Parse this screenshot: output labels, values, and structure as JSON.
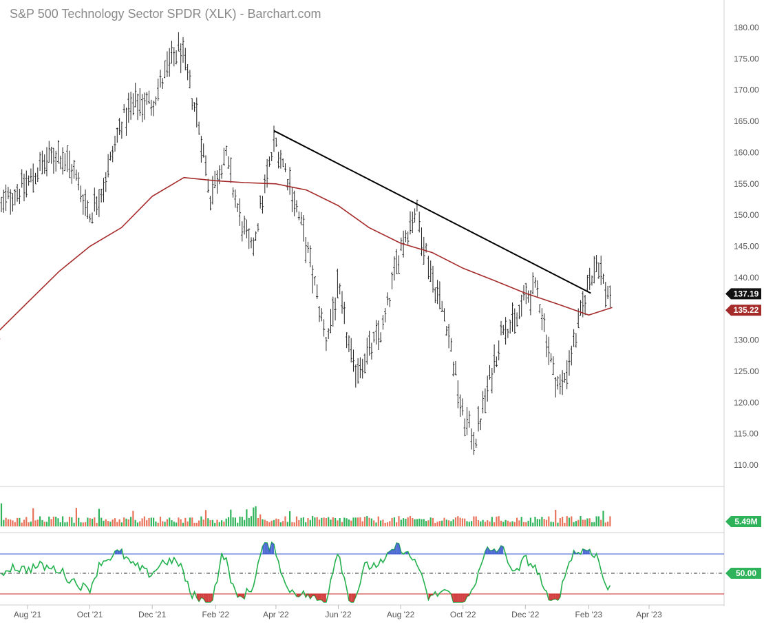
{
  "chart_data": {
    "type": "ohlc",
    "title": "S&P 500 Technology Sector SPDR (XLK) - Barchart.com",
    "colors": {
      "price_bars": "#222222",
      "moving_average": "#a52a2a",
      "trendline": "#000000",
      "volume_up": "#2fb35a",
      "volume_down": "#e8735a",
      "oscillator": "#22b14c",
      "overbought_line": "#3355cc",
      "oversold_line": "#cc2222",
      "mid_line": "#333333",
      "last_price_badge": "#111111",
      "ma_badge": "#a52a2a",
      "volume_badge": "#2fb35a",
      "osc_badge": "#2fb35a"
    },
    "price_axis": {
      "ticks": [
        "180.00",
        "175.00",
        "170.00",
        "165.00",
        "160.00",
        "155.00",
        "150.00",
        "145.00",
        "140.00",
        "135.00",
        "130.00",
        "125.00",
        "120.00",
        "115.00",
        "110.00"
      ],
      "ylim": [
        107,
        182
      ]
    },
    "x_axis": {
      "ticks": [
        "Aug '21",
        "Oct '21",
        "Dec '21",
        "Feb '22",
        "Apr '22",
        "Jun '22",
        "Aug '22",
        "Oct '22",
        "Dec '22",
        "Feb '23",
        "Apr '23"
      ]
    },
    "price_series": {
      "name": "XLK",
      "points": [
        [
          "2021-07-01",
          150
        ],
        [
          "2021-07-15",
          153
        ],
        [
          "2021-08-01",
          155
        ],
        [
          "2021-08-15",
          158
        ],
        [
          "2021-09-01",
          160
        ],
        [
          "2021-09-15",
          157
        ],
        [
          "2021-10-01",
          150
        ],
        [
          "2021-10-15",
          155
        ],
        [
          "2021-11-01",
          165
        ],
        [
          "2021-11-15",
          168
        ],
        [
          "2021-12-01",
          168
        ],
        [
          "2021-12-15",
          173
        ],
        [
          "2021-12-28",
          177
        ],
        [
          "2022-01-15",
          165
        ],
        [
          "2022-01-27",
          153
        ],
        [
          "2022-02-10",
          160
        ],
        [
          "2022-02-24",
          150
        ],
        [
          "2022-03-08",
          144
        ],
        [
          "2022-03-31",
          162
        ],
        [
          "2022-04-15",
          155
        ],
        [
          "2022-05-01",
          145
        ],
        [
          "2022-05-20",
          130
        ],
        [
          "2022-06-01",
          138
        ],
        [
          "2022-06-16",
          125
        ],
        [
          "2022-07-01",
          128
        ],
        [
          "2022-07-15",
          132
        ],
        [
          "2022-08-01",
          145
        ],
        [
          "2022-08-16",
          151
        ],
        [
          "2022-09-01",
          140
        ],
        [
          "2022-09-15",
          133
        ],
        [
          "2022-09-30",
          118
        ],
        [
          "2022-10-13",
          114
        ],
        [
          "2022-10-25",
          122
        ],
        [
          "2022-11-10",
          133
        ],
        [
          "2022-11-20",
          132
        ],
        [
          "2022-12-01",
          137
        ],
        [
          "2022-12-13",
          138
        ],
        [
          "2022-12-28",
          125
        ],
        [
          "2023-01-05",
          122
        ],
        [
          "2023-01-20",
          131
        ],
        [
          "2023-02-02",
          140
        ],
        [
          "2023-02-10",
          143
        ],
        [
          "2023-02-17",
          138
        ],
        [
          "2023-02-24",
          137.19
        ]
      ]
    },
    "moving_average": {
      "points": [
        [
          "2021-07-01",
          131
        ],
        [
          "2021-08-01",
          136
        ],
        [
          "2021-09-01",
          141
        ],
        [
          "2021-10-01",
          145
        ],
        [
          "2021-11-01",
          148
        ],
        [
          "2021-12-01",
          153
        ],
        [
          "2022-01-01",
          156
        ],
        [
          "2022-02-01",
          155.5
        ],
        [
          "2022-03-01",
          155.2
        ],
        [
          "2022-04-01",
          155
        ],
        [
          "2022-05-01",
          154
        ],
        [
          "2022-06-01",
          151.5
        ],
        [
          "2022-07-01",
          148
        ],
        [
          "2022-08-01",
          145.5
        ],
        [
          "2022-09-01",
          144
        ],
        [
          "2022-10-01",
          141.5
        ],
        [
          "2022-11-01",
          139.5
        ],
        [
          "2022-12-01",
          137.5
        ],
        [
          "2023-01-01",
          135.8
        ],
        [
          "2023-02-01",
          134
        ],
        [
          "2023-02-24",
          135.22
        ]
      ]
    },
    "trendline": {
      "start": [
        "2022-03-30",
        163.5
      ],
      "end": [
        "2023-02-03",
        137.5
      ]
    },
    "last_price_label": "137.19",
    "ma_label": "135.22",
    "volume": {
      "label": "5.49M"
    },
    "oscillator": {
      "label": "50.00",
      "upper_level": 70,
      "lower_level": 30,
      "mid_level": 50
    }
  }
}
